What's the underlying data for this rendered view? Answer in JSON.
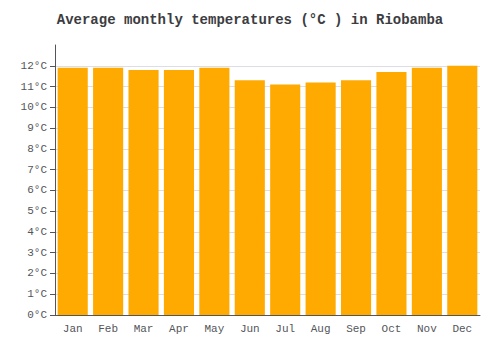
{
  "chart_data": {
    "type": "bar",
    "title": "Average monthly temperatures (°C ) in Riobamba",
    "categories": [
      "Jan",
      "Feb",
      "Mar",
      "Apr",
      "May",
      "Jun",
      "Jul",
      "Aug",
      "Sep",
      "Oct",
      "Nov",
      "Dec"
    ],
    "values": [
      11.9,
      11.9,
      11.8,
      11.8,
      11.9,
      11.3,
      11.1,
      11.2,
      11.3,
      11.7,
      11.9,
      12.0
    ],
    "color": "#FFAA00",
    "ylim": [
      0,
      13
    ],
    "yticks": [
      {
        "value": 0,
        "label": "0°C"
      },
      {
        "value": 1,
        "label": "1°C"
      },
      {
        "value": 2,
        "label": "2°C"
      },
      {
        "value": 3,
        "label": "3°C"
      },
      {
        "value": 4,
        "label": "4°C"
      },
      {
        "value": 5,
        "label": "5°C"
      },
      {
        "value": 6,
        "label": "6°C"
      },
      {
        "value": 7,
        "label": "7°C"
      },
      {
        "value": 8,
        "label": "8°C"
      },
      {
        "value": 9,
        "label": "9°C"
      },
      {
        "value": 10,
        "label": "10°C"
      },
      {
        "value": 11,
        "label": "11°C"
      },
      {
        "value": 12,
        "label": "12°C"
      }
    ],
    "grid": true
  }
}
